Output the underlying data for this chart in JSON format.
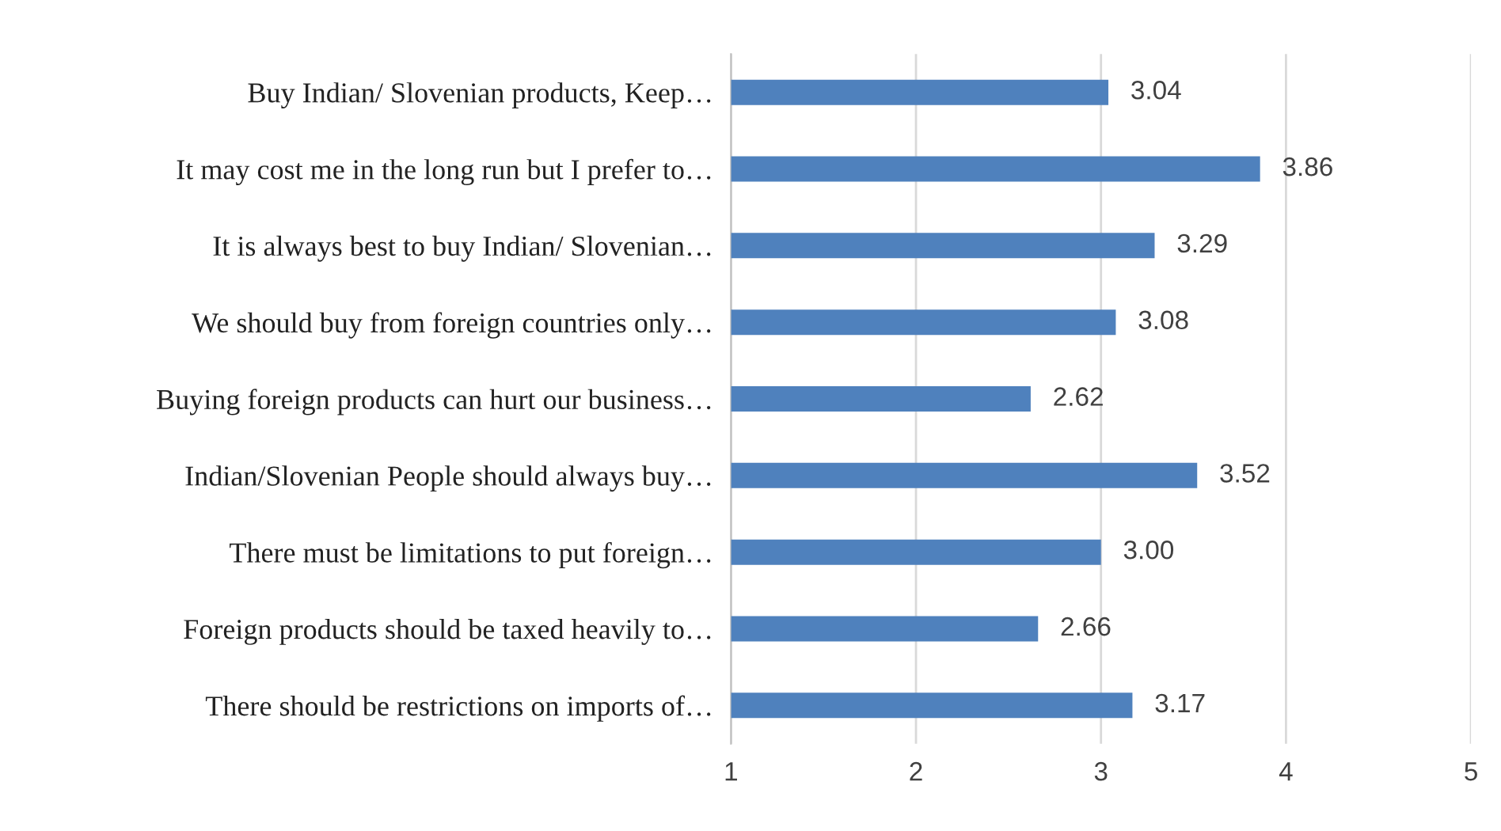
{
  "chart_data": {
    "type": "bar",
    "orientation": "horizontal",
    "categories": [
      "Buy Indian/ Slovenian products, Keep…",
      "It may cost me in the long run but I prefer to…",
      "It is always best to buy Indian/ Slovenian…",
      "We should buy from foreign countries only…",
      "Buying foreign products can hurt our business…",
      "Indian/Slovenian People should always buy…",
      "There must be limitations to put foreign…",
      "Foreign products should be taxed heavily to…",
      "There should be restrictions on imports of…"
    ],
    "values": [
      3.04,
      3.86,
      3.29,
      3.08,
      2.62,
      3.52,
      3.0,
      2.66,
      3.17
    ],
    "value_labels": [
      "3.04",
      "3.86",
      "3.29",
      "3.08",
      "2.62",
      "3.52",
      "3.00",
      "2.66",
      "3.17"
    ],
    "color": "#4f81bd",
    "xlim": [
      1,
      5
    ],
    "xticks": [
      1,
      2,
      3,
      4,
      5
    ],
    "grid": "x",
    "legend": false
  }
}
